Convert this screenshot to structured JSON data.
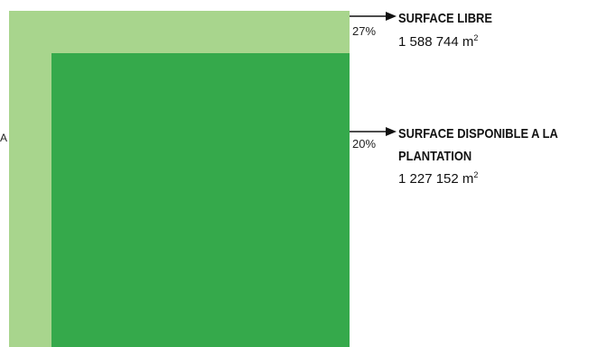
{
  "colors": {
    "outer_square": "#a8d58d",
    "inner_square": "#35a94b",
    "arrow": "#111111",
    "text": "#111111"
  },
  "edge_letter": "A",
  "areas": [
    {
      "percent": "27%",
      "title": "SURFACE LIBRE",
      "value": "1 588 744 m",
      "unit_exp": "2"
    },
    {
      "percent": "20%",
      "title_line1": "SURFACE DISPONIBLE A LA",
      "title_line2": "PLANTATION",
      "value": "1 227 152 m",
      "unit_exp": "2"
    }
  ]
}
